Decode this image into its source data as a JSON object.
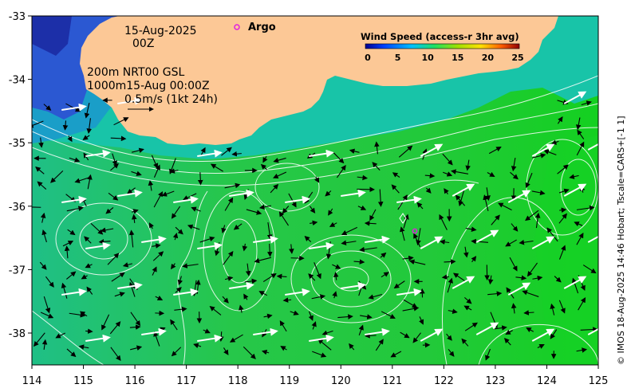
{
  "map": {
    "date_line1": "15-Aug-2025",
    "date_line2": "00Z",
    "product_line1": "200m  NRT00 GSL",
    "product_line2": "1000m15-Aug 00:00Z",
    "scale_label": "0.5m/s (1kt 24h)",
    "argo_label": "Argo",
    "credit": "© IMOS 18-Aug-2025 14:46 Hobart; Tscale=CARS+[-1 1]",
    "colorbar": {
      "title": "Wind Speed (access-r 3hr avg)",
      "ticks": [
        "0",
        "5",
        "10",
        "15",
        "20",
        "25"
      ]
    },
    "lon_ticks": [
      "114",
      "115",
      "116",
      "117",
      "118",
      "119",
      "120",
      "121",
      "122",
      "123",
      "124",
      "125"
    ],
    "lat_ticks": [
      "-33",
      "-34",
      "-35",
      "-36",
      "-37",
      "-38"
    ],
    "colors": {
      "land": "#fcc896",
      "ocean_mid": "#22c83c",
      "coastal_cyan": "#14c8c8",
      "deep_blue": "#1e3cc8",
      "argo_marker": "#e020e0"
    }
  }
}
